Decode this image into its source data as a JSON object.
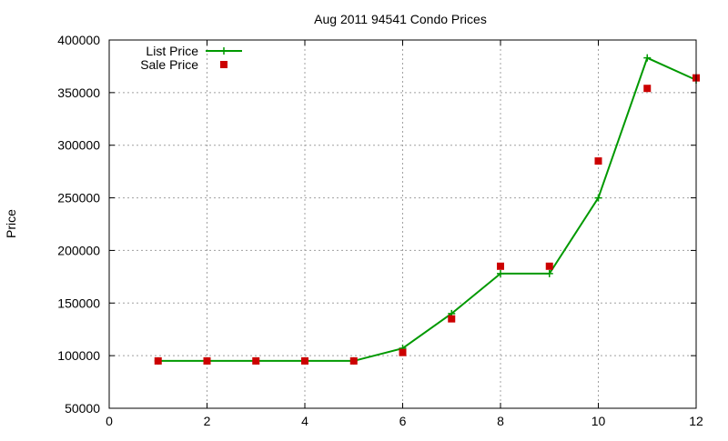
{
  "chart_data": {
    "type": "line",
    "title": "Aug 2011 94541 Condo Prices",
    "xlabel": "",
    "ylabel": "Price",
    "xlim": [
      0,
      12
    ],
    "ylim": [
      50000,
      400000
    ],
    "x_ticks": [
      0,
      2,
      4,
      6,
      8,
      10,
      12
    ],
    "y_ticks": [
      50000,
      100000,
      150000,
      200000,
      250000,
      300000,
      350000,
      400000
    ],
    "grid": true,
    "legend_position": "top-left",
    "series": [
      {
        "name": "List Price",
        "kind": "line+cross",
        "color": "#009900",
        "x": [
          1,
          2,
          3,
          4,
          5,
          6,
          7,
          8,
          9,
          10,
          11,
          12
        ],
        "y": [
          95000,
          95000,
          95000,
          95000,
          95000,
          107000,
          140000,
          178000,
          178000,
          250000,
          383000,
          362000
        ]
      },
      {
        "name": "Sale Price",
        "kind": "square",
        "color": "#cc0000",
        "x": [
          1,
          2,
          3,
          4,
          5,
          6,
          7,
          8,
          9,
          10,
          11,
          12
        ],
        "y": [
          95000,
          95000,
          95000,
          95000,
          95000,
          103000,
          135000,
          185000,
          185000,
          285000,
          354000,
          364000
        ]
      }
    ]
  }
}
